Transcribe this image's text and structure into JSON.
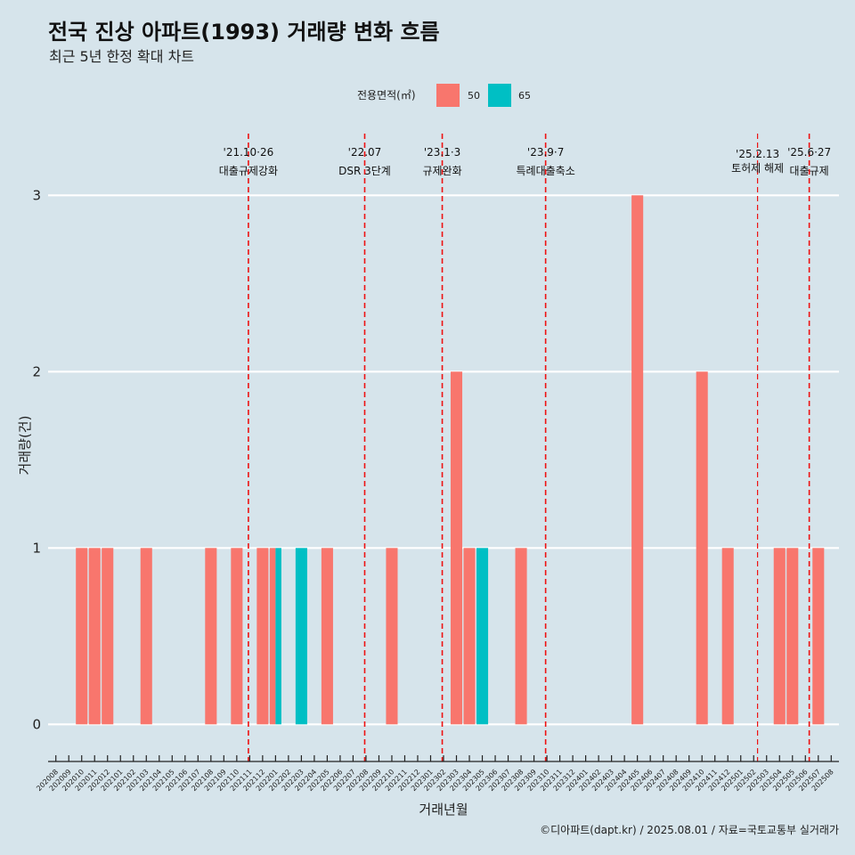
{
  "chart_data": {
    "type": "bar",
    "title": "전국 진상 아파트(1993) 거래량 변화 흐름",
    "subtitle": "최근 5년 한정 확대 차트",
    "xlabel": "거래년월",
    "ylabel": "거래량(건)",
    "caption": "©디아파트(dapt.kr) / 2025.08.01 / 자료=국토교통부 실거래가",
    "ylim": [
      -0.15,
      3.35
    ],
    "yticks": [
      0,
      1,
      2,
      3
    ],
    "legend": {
      "title": "전용면적(㎡)",
      "position": "top",
      "items": [
        {
          "label": "50",
          "color": "#F8766D"
        },
        {
          "label": "65",
          "color": "#00BFC4"
        }
      ]
    },
    "categories": [
      "202008",
      "202009",
      "202010",
      "202011",
      "202012",
      "202101",
      "202102",
      "202103",
      "202104",
      "202105",
      "202106",
      "202107",
      "202108",
      "202109",
      "202110",
      "202111",
      "202112",
      "202201",
      "202202",
      "202203",
      "202204",
      "202205",
      "202206",
      "202207",
      "202208",
      "202209",
      "202210",
      "202211",
      "202212",
      "202301",
      "202302",
      "202303",
      "202304",
      "202305",
      "202306",
      "202307",
      "202308",
      "202309",
      "202310",
      "202311",
      "202312",
      "202401",
      "202402",
      "202403",
      "202404",
      "202405",
      "202406",
      "202407",
      "202408",
      "202409",
      "202410",
      "202411",
      "202412",
      "202501",
      "202502",
      "202503",
      "202504",
      "202505",
      "202506",
      "202507",
      "202508"
    ],
    "bars": [
      {
        "month": "202010",
        "series": "50",
        "value": 1
      },
      {
        "month": "202011",
        "series": "50",
        "value": 1
      },
      {
        "month": "202012",
        "series": "50",
        "value": 1
      },
      {
        "month": "202103",
        "series": "50",
        "value": 1
      },
      {
        "month": "202108",
        "series": "50",
        "value": 1
      },
      {
        "month": "202110",
        "series": "50",
        "value": 1
      },
      {
        "month": "202112",
        "series": "50",
        "value": 1
      },
      {
        "month": "202201",
        "series": "50",
        "value": 1
      },
      {
        "month": "202201",
        "series": "65",
        "value": 1
      },
      {
        "month": "202203",
        "series": "65",
        "value": 1
      },
      {
        "month": "202205",
        "series": "50",
        "value": 1
      },
      {
        "month": "202210",
        "series": "50",
        "value": 1
      },
      {
        "month": "202303",
        "series": "50",
        "value": 2
      },
      {
        "month": "202304",
        "series": "50",
        "value": 1
      },
      {
        "month": "202305",
        "series": "65",
        "value": 1
      },
      {
        "month": "202308",
        "series": "50",
        "value": 1
      },
      {
        "month": "202405",
        "series": "50",
        "value": 3
      },
      {
        "month": "202410",
        "series": "50",
        "value": 2
      },
      {
        "month": "202412",
        "series": "50",
        "value": 1
      },
      {
        "month": "202504",
        "series": "50",
        "value": 1
      },
      {
        "month": "202505",
        "series": "50",
        "value": 1
      },
      {
        "month": "202507",
        "series": "50",
        "value": 1
      }
    ],
    "annotations": [
      {
        "x": 14.9,
        "line1": "'21.10·26",
        "line2": "대출규제강화",
        "small": false
      },
      {
        "x": 23.9,
        "line1": "'22.07",
        "line2": "DSR 3단계",
        "small": false
      },
      {
        "x": 29.9,
        "line1": "'23.1·3",
        "line2": "규제완화",
        "small": false
      },
      {
        "x": 37.9,
        "line1": "'23.9·7",
        "line2": "특례대출축소",
        "small": false
      },
      {
        "x": 54.3,
        "line1": "'25.2.13",
        "line2": "토허제 해제",
        "small": true
      },
      {
        "x": 58.3,
        "line1": "'25.6·27",
        "line2": "대출규제",
        "small": false
      }
    ]
  }
}
